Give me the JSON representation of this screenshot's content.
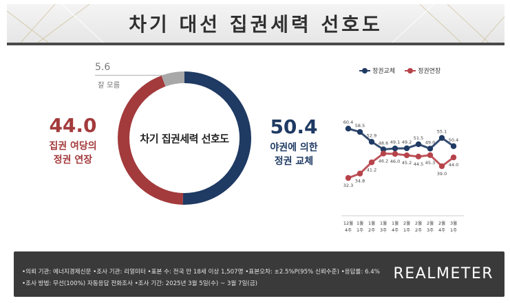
{
  "header": {
    "title": "차기 대선 집권세력 선호도"
  },
  "donut": {
    "center_label": "차기 집권세력 선호도",
    "unknown": {
      "value": "5.6",
      "label": "잘 모름",
      "color": "#a8a8a8"
    },
    "ruling": {
      "value": "44.0",
      "line1": "집권 여당의",
      "line2": "정권 연장",
      "color": "#a33a3c"
    },
    "opposition": {
      "value": "50.4",
      "line1": "야권에 의한",
      "line2": "정권 교체",
      "color": "#1f3a63"
    }
  },
  "chart_data": {
    "type": "line",
    "categories": [
      "12월 4주",
      "1월 1주",
      "1월 2주",
      "1월 3주",
      "1월 4주",
      "2월 1주",
      "2월 2주",
      "2월 3주",
      "2월 4주",
      "3월 1주"
    ],
    "category_lines": [
      [
        "12월",
        "4주"
      ],
      [
        "1월",
        "1주"
      ],
      [
        "1월",
        "2주"
      ],
      [
        "1월",
        "3주"
      ],
      [
        "1월",
        "4주"
      ],
      [
        "2월",
        "1주"
      ],
      [
        "2월",
        "2주"
      ],
      [
        "2월",
        "3주"
      ],
      [
        "2월",
        "4주"
      ],
      [
        "3월",
        "1주"
      ]
    ],
    "series": [
      {
        "name": "정권교체",
        "color": "#1f3a63",
        "values": [
          60.4,
          58.5,
          52.9,
          48.6,
          49.1,
          49.2,
          51.5,
          49.0,
          55.1,
          50.4
        ]
      },
      {
        "name": "정권연장",
        "color": "#b7434a",
        "values": [
          32.3,
          34.8,
          41.2,
          46.2,
          46.0,
          45.2,
          44.5,
          45.3,
          39.0,
          44.0
        ]
      }
    ],
    "ylim": [
      28,
      64
    ]
  },
  "footer": {
    "line1": "•의뢰 기관: 에너지경제신문 •조사 기관: 리얼미터 •표본 수: 전국 만 18세 이상 1,507명 •표본오차: ±2.5%P(95% 신뢰수준) •응답률: 6.4%",
    "line2": "•조사 방법: 무선(100%) 자동응답 전화조사 •조사 기간: 2025년 3월 5일(수) ~ 3월 7일(금)",
    "logo": "REALMETER"
  }
}
